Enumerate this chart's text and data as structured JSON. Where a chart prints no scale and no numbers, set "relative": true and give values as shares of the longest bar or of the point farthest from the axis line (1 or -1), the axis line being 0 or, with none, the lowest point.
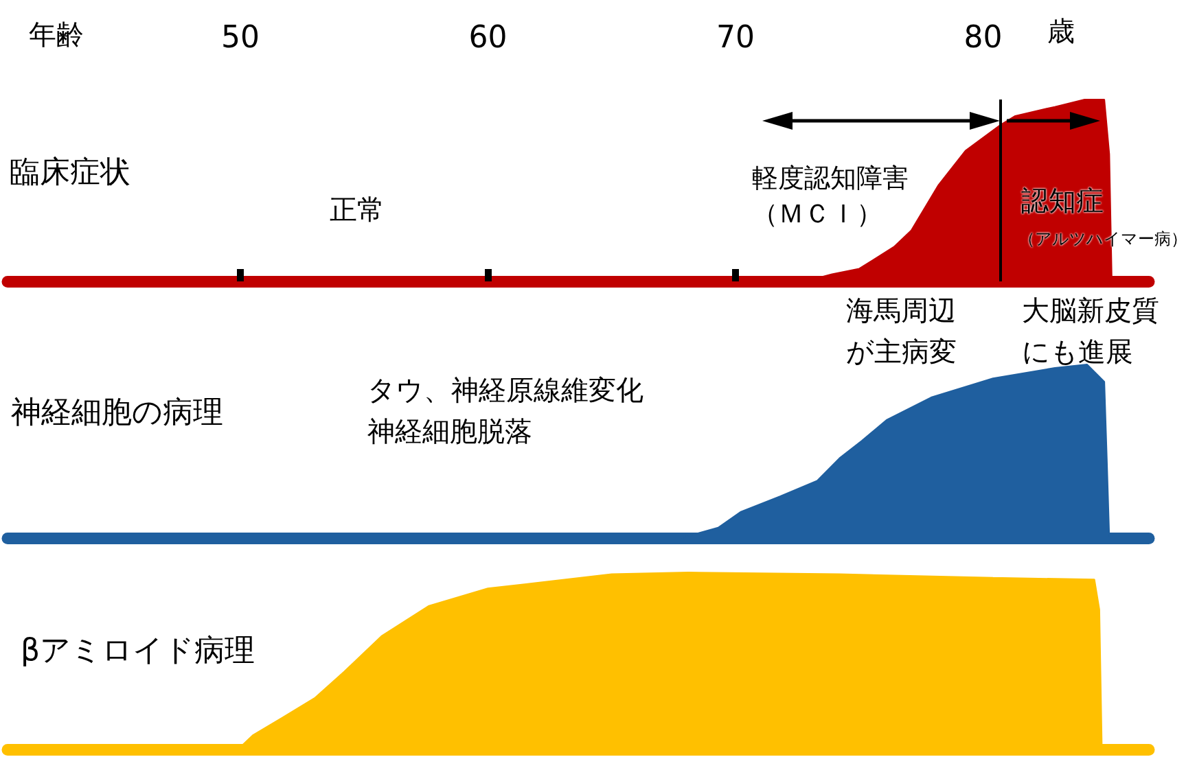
{
  "chart_data": [
    {
      "type": "area",
      "xlabel": "年齢",
      "ylabel": "臨床症状",
      "relative": true,
      "color": "#c00000",
      "xlim": [
        40.6,
        86.7
      ],
      "xticks": [
        50,
        60,
        70,
        80
      ],
      "x": [
        72.8,
        73.9,
        75.0,
        76.4,
        77.1,
        78.2,
        79.3,
        79.9,
        80.7,
        81.3,
        82.9,
        84.1,
        84.9,
        85.1,
        85.2
      ],
      "values": [
        0,
        0.04,
        0.07,
        0.19,
        0.28,
        0.53,
        0.72,
        0.78,
        0.86,
        0.91,
        0.96,
        1,
        1,
        0.7,
        0
      ],
      "ref_lines": [
        {
          "axis": "x",
          "value": 80.7,
          "color": "#000000"
        }
      ],
      "annotations": [
        "歳",
        "正常",
        "軽度認知障害（ＭＣＩ）",
        "認知症",
        "（アルツハイマー病）",
        "海馬周辺が主病変",
        "大脳新皮質にも進展"
      ]
    },
    {
      "type": "area",
      "ylabel": "神経細胞の病理",
      "relative": true,
      "color": "#1f5f9f",
      "xlim": [
        40.6,
        86.7
      ],
      "tick_labels": false,
      "x": [
        67.8,
        69.3,
        70.2,
        71.8,
        73.3,
        74.2,
        75.1,
        76.1,
        77.9,
        80.4,
        82.9,
        84.2,
        84.9,
        85.0,
        85.1
      ],
      "values": [
        0,
        0.06,
        0.15,
        0.24,
        0.33,
        0.46,
        0.56,
        0.68,
        0.81,
        0.92,
        0.98,
        1,
        0.9,
        0.46,
        0
      ],
      "annotations": [
        "タウ、神経原線維変化神経細胞脱落"
      ]
    },
    {
      "type": "area",
      "ylabel": "βアミロイド病理",
      "relative": true,
      "color": "#ffc000",
      "xlim": [
        40.6,
        86.7
      ],
      "tick_labels": false,
      "x": [
        49.9,
        50.5,
        51.7,
        53.0,
        54.2,
        55.7,
        57.6,
        60.0,
        61.9,
        65.0,
        68.1,
        74.2,
        80.4,
        84.5,
        84.7,
        84.8
      ],
      "values": [
        0,
        0.08,
        0.18,
        0.29,
        0.44,
        0.64,
        0.81,
        0.91,
        0.94,
        0.99,
        1,
        0.99,
        0.97,
        0.96,
        0.79,
        0
      ]
    }
  ]
}
